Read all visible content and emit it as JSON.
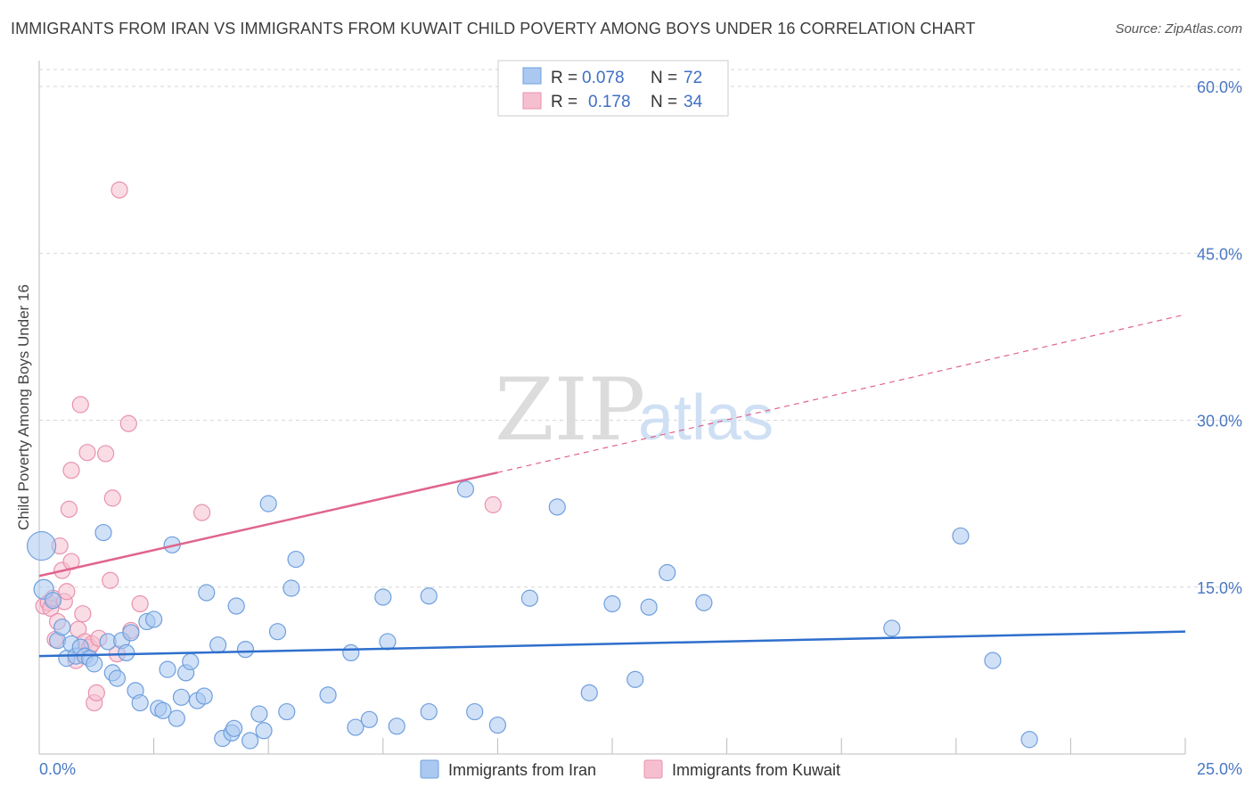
{
  "title": "IMMIGRANTS FROM IRAN VS IMMIGRANTS FROM KUWAIT CHILD POVERTY AMONG BOYS UNDER 16 CORRELATION CHART",
  "source": "Source: ZipAtlas.com",
  "watermark": {
    "part1": "ZIP",
    "part2": "atlas"
  },
  "colors": {
    "iran_fill": "#aac8f0",
    "iran_stroke": "#6f9fdd",
    "iran_line": "#2f6fcc",
    "kuwait_fill": "#f6bfd0",
    "kuwait_stroke": "#e892ae",
    "kuwait_line": "#e0648e",
    "tick_label": "#4a78c2",
    "grid": "#d6d6d6"
  },
  "legend": {
    "rows": [
      {
        "r_label": "R =",
        "r_value": "0.078",
        "n_label": "N =",
        "n_value": "72"
      },
      {
        "r_label": "R =",
        "r_value": "0.178",
        "n_label": "N =",
        "n_value": "34"
      }
    ]
  },
  "chart_data": {
    "type": "scatter",
    "title": "IMMIGRANTS FROM IRAN VS IMMIGRANTS FROM KUWAIT CHILD POVERTY AMONG BOYS UNDER 16 CORRELATION CHART",
    "xlabel": "",
    "ylabel": "Child Poverty Among Boys Under 16",
    "xlim": [
      0,
      25
    ],
    "ylim": [
      0,
      63
    ],
    "x_tick_labels": [
      "0.0%",
      "25.0%"
    ],
    "y_ticks": [
      15,
      30,
      45,
      60
    ],
    "y_tick_labels": [
      "15.0%",
      "30.0%",
      "45.0%",
      "60.0%"
    ],
    "legend_position": "bottom-center",
    "series": [
      {
        "name": "Immigrants from Iran",
        "r": 0.078,
        "n": 72,
        "trend": {
          "x0": 0,
          "y0": 8.8,
          "x1": 25,
          "y1": 11.0
        },
        "points": [
          [
            0.05,
            18.7
          ],
          [
            0.1,
            14.8
          ],
          [
            0.3,
            13.8
          ],
          [
            0.4,
            10.2
          ],
          [
            0.5,
            11.4
          ],
          [
            0.6,
            8.6
          ],
          [
            0.7,
            9.9
          ],
          [
            0.8,
            8.8
          ],
          [
            0.9,
            9.6
          ],
          [
            1.0,
            8.8
          ],
          [
            1.1,
            8.6
          ],
          [
            1.2,
            8.1
          ],
          [
            1.4,
            19.9
          ],
          [
            1.5,
            10.1
          ],
          [
            1.6,
            7.3
          ],
          [
            1.7,
            6.8
          ],
          [
            1.8,
            10.2
          ],
          [
            1.9,
            9.1
          ],
          [
            2.0,
            10.9
          ],
          [
            2.1,
            5.7
          ],
          [
            2.2,
            4.6
          ],
          [
            2.35,
            11.9
          ],
          [
            2.5,
            12.1
          ],
          [
            2.6,
            4.1
          ],
          [
            2.7,
            3.9
          ],
          [
            2.8,
            7.6
          ],
          [
            2.9,
            18.8
          ],
          [
            3.0,
            3.2
          ],
          [
            3.1,
            5.1
          ],
          [
            3.2,
            7.3
          ],
          [
            3.3,
            8.3
          ],
          [
            3.45,
            4.8
          ],
          [
            3.6,
            5.2
          ],
          [
            3.65,
            14.5
          ],
          [
            3.9,
            9.8
          ],
          [
            4.0,
            1.4
          ],
          [
            4.2,
            1.9
          ],
          [
            4.25,
            2.3
          ],
          [
            4.3,
            13.3
          ],
          [
            4.5,
            9.4
          ],
          [
            4.6,
            1.2
          ],
          [
            4.8,
            3.6
          ],
          [
            4.9,
            2.1
          ],
          [
            5.0,
            22.5
          ],
          [
            5.2,
            11.0
          ],
          [
            5.4,
            3.8
          ],
          [
            5.5,
            14.9
          ],
          [
            5.6,
            17.5
          ],
          [
            6.3,
            5.3
          ],
          [
            6.8,
            9.1
          ],
          [
            6.9,
            2.4
          ],
          [
            7.2,
            3.1
          ],
          [
            7.5,
            14.1
          ],
          [
            7.6,
            10.1
          ],
          [
            7.8,
            2.5
          ],
          [
            8.5,
            14.2
          ],
          [
            8.5,
            3.8
          ],
          [
            9.3,
            23.8
          ],
          [
            9.5,
            3.8
          ],
          [
            10.0,
            2.6
          ],
          [
            10.7,
            14.0
          ],
          [
            11.3,
            22.2
          ],
          [
            12.0,
            5.5
          ],
          [
            12.5,
            13.5
          ],
          [
            13.0,
            6.7
          ],
          [
            13.3,
            13.2
          ],
          [
            13.7,
            16.3
          ],
          [
            14.5,
            13.6
          ],
          [
            18.6,
            11.3
          ],
          [
            20.1,
            19.6
          ],
          [
            20.8,
            8.4
          ],
          [
            21.6,
            1.3
          ]
        ]
      },
      {
        "name": "Immigrants from Kuwait",
        "r": 0.178,
        "n": 34,
        "trend_solid": {
          "x0": 0,
          "y0": 16.0,
          "x1": 10,
          "y1": 25.3
        },
        "trend_dashed": {
          "x0": 10,
          "y0": 25.3,
          "x1": 25,
          "y1": 39.5
        },
        "points": [
          [
            0.1,
            13.3
          ],
          [
            0.2,
            13.6
          ],
          [
            0.25,
            13.1
          ],
          [
            0.3,
            14.0
          ],
          [
            0.35,
            10.3
          ],
          [
            0.4,
            11.9
          ],
          [
            0.45,
            18.7
          ],
          [
            0.5,
            16.5
          ],
          [
            0.55,
            13.7
          ],
          [
            0.6,
            14.6
          ],
          [
            0.65,
            22.0
          ],
          [
            0.7,
            17.3
          ],
          [
            0.7,
            25.5
          ],
          [
            0.8,
            8.4
          ],
          [
            0.85,
            11.2
          ],
          [
            0.9,
            31.4
          ],
          [
            0.95,
            12.6
          ],
          [
            1.0,
            10.1
          ],
          [
            1.05,
            27.1
          ],
          [
            1.1,
            9.6
          ],
          [
            1.15,
            9.9
          ],
          [
            1.2,
            4.6
          ],
          [
            1.25,
            5.5
          ],
          [
            1.3,
            10.4
          ],
          [
            1.45,
            27.0
          ],
          [
            1.55,
            15.6
          ],
          [
            1.6,
            23.0
          ],
          [
            1.7,
            9.0
          ],
          [
            1.75,
            50.7
          ],
          [
            1.95,
            29.7
          ],
          [
            2.0,
            11.1
          ],
          [
            2.2,
            13.5
          ],
          [
            3.55,
            21.7
          ],
          [
            9.9,
            22.4
          ]
        ]
      }
    ]
  },
  "bottom_legend": {
    "iran_label": "Immigrants from Iran",
    "kuwait_label": "Immigrants from Kuwait"
  }
}
